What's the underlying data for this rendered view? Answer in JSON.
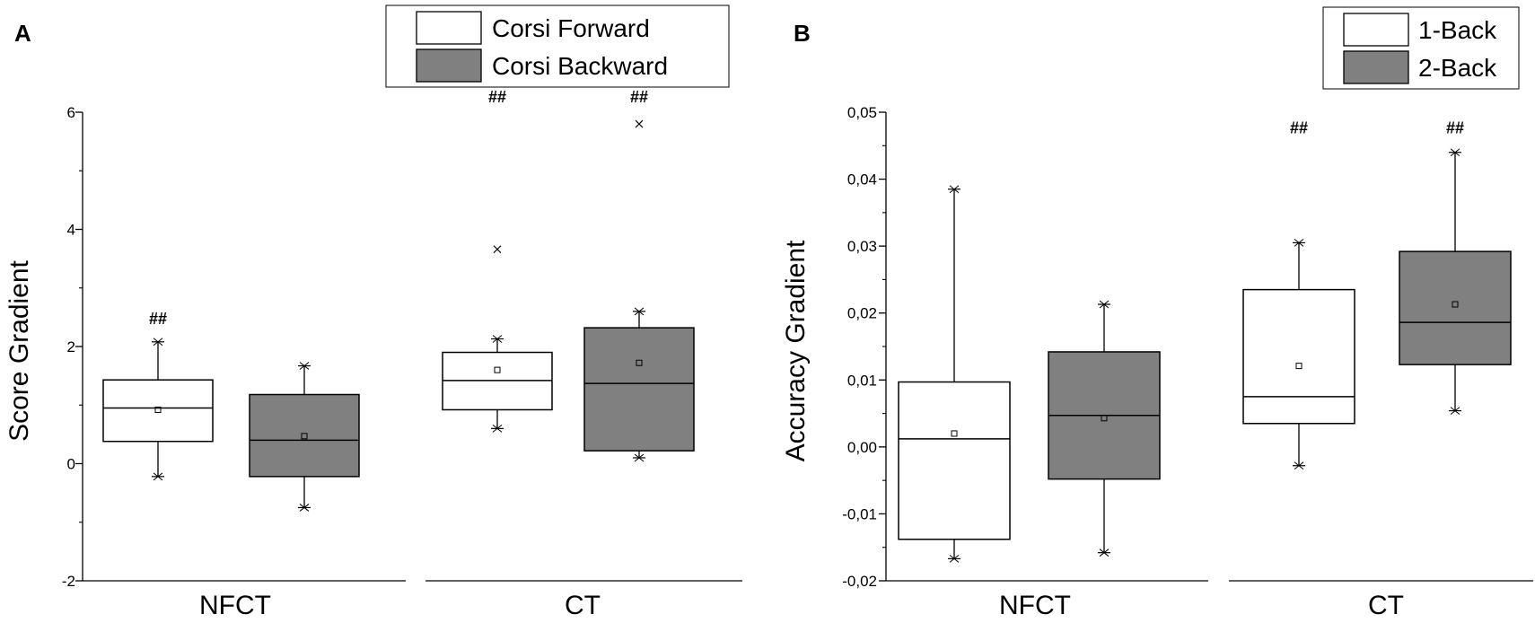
{
  "chart_data": [
    {
      "panel": "A",
      "type": "box",
      "ylabel": "Score Gradient",
      "ylim": [
        -2,
        6
      ],
      "yticks": [
        -2,
        0,
        2,
        4,
        6
      ],
      "yticklabels": [
        "-2",
        "0",
        "2",
        "4",
        "6"
      ],
      "groups": [
        "NFCT",
        "CT"
      ],
      "legend": {
        "position": "top",
        "entries": [
          {
            "name": "Corsi Forward",
            "color": "#ffffff"
          },
          {
            "name": "Corsi Backward",
            "color": "#808080"
          }
        ]
      },
      "boxes": [
        {
          "group": "NFCT",
          "series": "Corsi Forward",
          "min": -0.22,
          "q1": 0.38,
          "median": 0.95,
          "mean": 0.92,
          "q3": 1.43,
          "max": 2.08,
          "outliers": [],
          "annotation": "##"
        },
        {
          "group": "NFCT",
          "series": "Corsi Backward",
          "min": -0.75,
          "q1": -0.22,
          "median": 0.4,
          "mean": 0.47,
          "q3": 1.18,
          "max": 1.67,
          "outliers": [],
          "annotation": ""
        },
        {
          "group": "CT",
          "series": "Corsi Forward",
          "min": 0.6,
          "q1": 0.92,
          "median": 1.42,
          "mean": 1.6,
          "q3": 1.9,
          "max": 2.13,
          "outliers": [
            3.66
          ],
          "annotation": "##"
        },
        {
          "group": "CT",
          "series": "Corsi Backward",
          "min": 0.1,
          "q1": 0.22,
          "median": 1.37,
          "mean": 1.72,
          "q3": 2.32,
          "max": 2.6,
          "outliers": [
            5.8
          ],
          "annotation": "##"
        }
      ]
    },
    {
      "panel": "B",
      "type": "box",
      "ylabel": "Accuracy Gradient",
      "ylim": [
        -0.02,
        0.05
      ],
      "yticks": [
        -0.02,
        -0.01,
        0,
        0.01,
        0.02,
        0.03,
        0.04,
        0.05
      ],
      "yticklabels": [
        "-0,02",
        "-0,01",
        "0,00",
        "0,01",
        "0,02",
        "0,03",
        "0,04",
        "0,05"
      ],
      "groups": [
        "NFCT",
        "CT"
      ],
      "legend": {
        "position": "top-right",
        "entries": [
          {
            "name": "1-Back",
            "color": "#ffffff"
          },
          {
            "name": "2-Back",
            "color": "#808080"
          }
        ]
      },
      "boxes": [
        {
          "group": "NFCT",
          "series": "1-Back",
          "min": -0.0167,
          "q1": -0.0138,
          "median": 0.0012,
          "mean": 0.002,
          "q3": 0.0097,
          "max": 0.0385,
          "outliers": [],
          "annotation": ""
        },
        {
          "group": "NFCT",
          "series": "2-Back",
          "min": -0.0158,
          "q1": -0.0048,
          "median": 0.0047,
          "mean": 0.0043,
          "q3": 0.0142,
          "max": 0.0213,
          "outliers": [],
          "annotation": ""
        },
        {
          "group": "CT",
          "series": "1-Back",
          "min": -0.0028,
          "q1": 0.0035,
          "median": 0.0075,
          "mean": 0.0121,
          "q3": 0.0235,
          "max": 0.0305,
          "outliers": [],
          "annotation": "##"
        },
        {
          "group": "CT",
          "series": "2-Back",
          "min": 0.0054,
          "q1": 0.0123,
          "median": 0.0186,
          "mean": 0.0213,
          "q3": 0.0292,
          "max": 0.044,
          "outliers": [],
          "annotation": "##"
        }
      ]
    }
  ]
}
